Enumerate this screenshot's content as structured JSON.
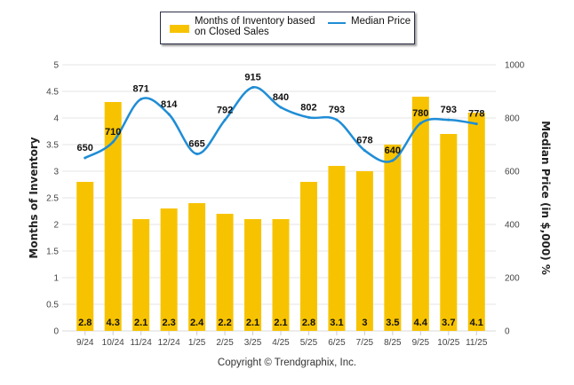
{
  "chart_data": {
    "type": "bar",
    "categories": [
      "9/24",
      "10/24",
      "11/24",
      "12/24",
      "1/25",
      "2/25",
      "3/25",
      "4/25",
      "5/25",
      "6/25",
      "7/25",
      "8/25",
      "9/25",
      "10/25",
      "11/25"
    ],
    "series": [
      {
        "name": "Months of Inventory based on Closed Sales",
        "type": "bar",
        "axis": "left",
        "color": "#f7c300",
        "values": [
          2.8,
          4.3,
          2.1,
          2.3,
          2.4,
          2.2,
          2.1,
          2.1,
          2.8,
          3.1,
          3,
          3.5,
          4.4,
          3.7,
          4.1
        ],
        "labels": [
          "2.8",
          "4.3",
          "2.1",
          "2.3",
          "2.4",
          "2.2",
          "2.1",
          "2.1",
          "2.8",
          "3.1",
          "3",
          "3.5",
          "4.4",
          "3.7",
          "4.1"
        ]
      },
      {
        "name": "Median Price",
        "type": "line",
        "axis": "right",
        "color": "#1f8dd6",
        "values": [
          650,
          710,
          871,
          814,
          665,
          792,
          915,
          840,
          802,
          793,
          678,
          640,
          780,
          793,
          778
        ]
      }
    ],
    "ylabel": "Months of Inventory",
    "ylabel_right": "Median Price (in $,000) %",
    "ylim": [
      0,
      5
    ],
    "yticks": [
      "0",
      "0.5",
      "1",
      "1.5",
      "2",
      "2.5",
      "3",
      "3.5",
      "4",
      "4.5",
      "5"
    ],
    "ylim_right": [
      0,
      1000
    ],
    "yticks_right": [
      "0",
      "200",
      "400",
      "600",
      "800",
      "1000"
    ],
    "grid": true,
    "legend_position": "top-center"
  },
  "legend": {
    "bar_label_line1": "Months of Inventory based",
    "bar_label_line2": "on Closed Sales",
    "line_label": "Median Price"
  },
  "footer": {
    "copyright": "Copyright © Trendgraphix, Inc."
  }
}
